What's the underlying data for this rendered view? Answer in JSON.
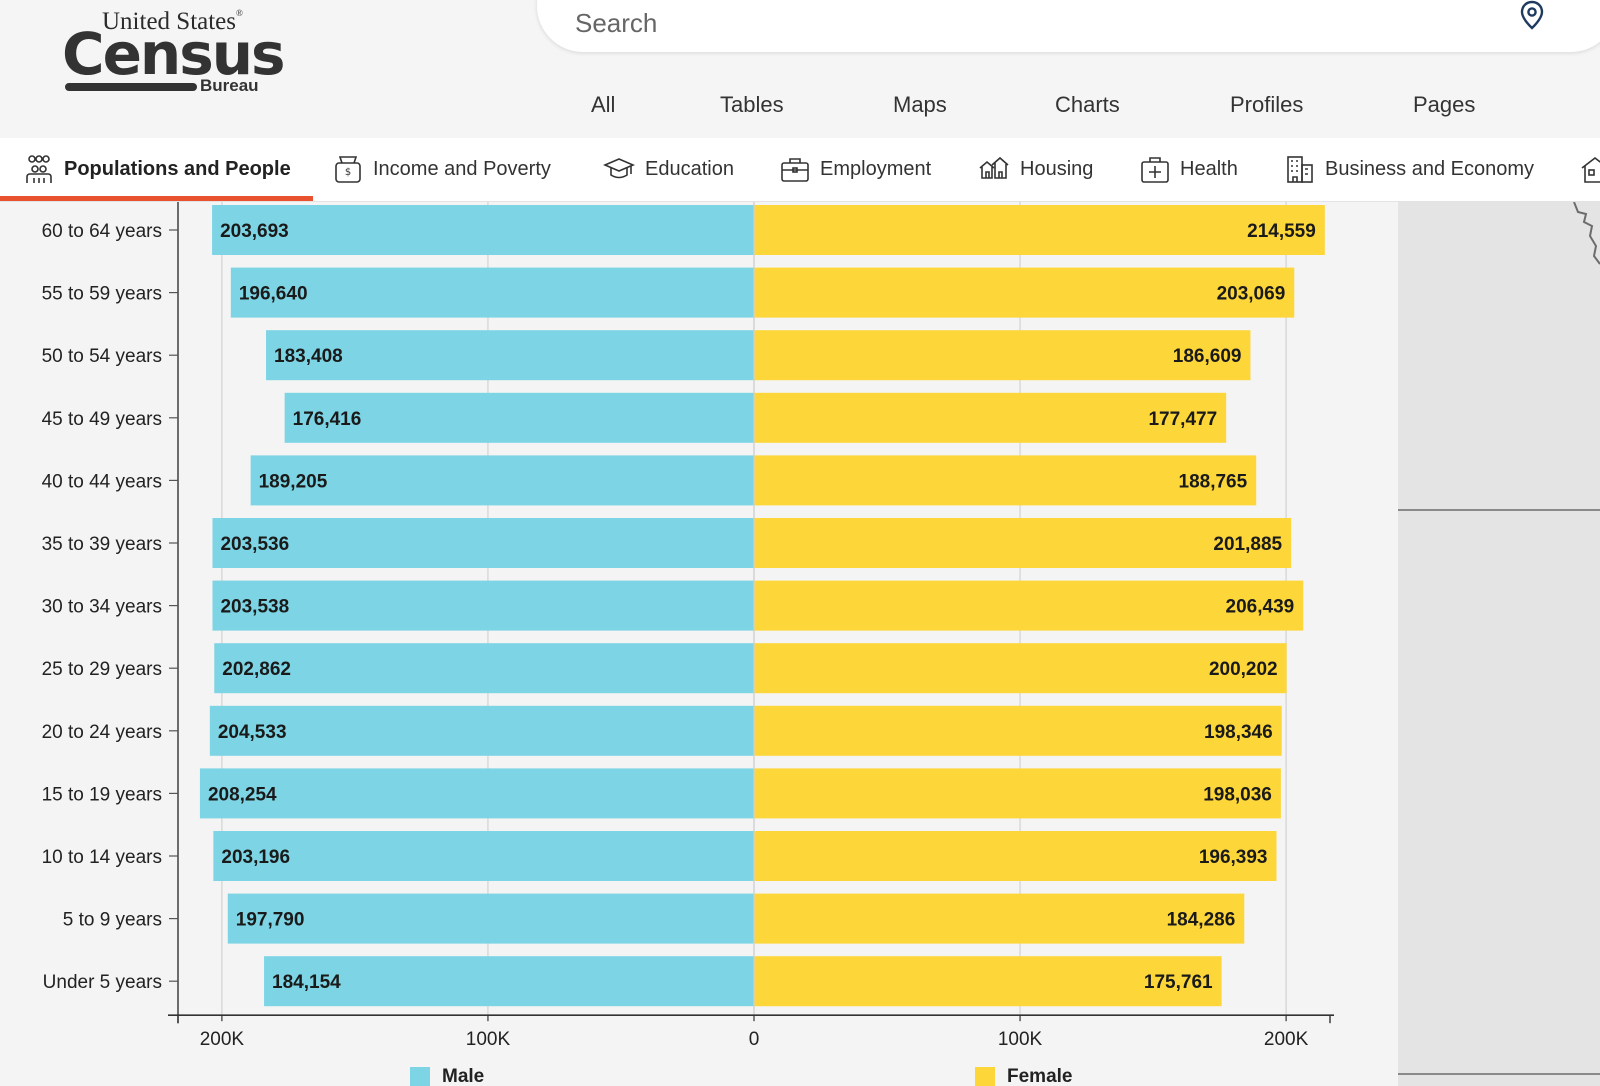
{
  "header": {
    "logo": {
      "line1": "United States",
      "line2": "Census",
      "line3": "Bureau",
      "reg_mark": "®"
    },
    "search": {
      "placeholder": "Search",
      "value": ""
    },
    "filters": [
      "All",
      "Tables",
      "Maps",
      "Charts",
      "Profiles",
      "Pages"
    ],
    "icons": {
      "search_pin": "map-pin-icon"
    }
  },
  "topics": [
    {
      "label": "Populations and People",
      "icon": "people-icon",
      "active": true
    },
    {
      "label": "Income and Poverty",
      "icon": "money-bag-icon",
      "active": false
    },
    {
      "label": "Education",
      "icon": "graduation-cap-icon",
      "active": false
    },
    {
      "label": "Employment",
      "icon": "briefcase-icon",
      "active": false
    },
    {
      "label": "Housing",
      "icon": "houses-icon",
      "active": false
    },
    {
      "label": "Health",
      "icon": "medical-kit-icon",
      "active": false
    },
    {
      "label": "Business and Economy",
      "icon": "buildings-icon",
      "active": false
    },
    {
      "label": "",
      "icon": "house-icon",
      "active": false
    }
  ],
  "colors": {
    "accent": "#e8522f",
    "male": "#7cd4e4",
    "female": "#fdd63a"
  },
  "chart_data": {
    "type": "bar",
    "orientation": "horizontal-population-pyramid",
    "categories": [
      "60 to 64 years",
      "55 to 59 years",
      "50 to 54 years",
      "45 to 49 years",
      "40 to 44 years",
      "35 to 39 years",
      "30 to 34 years",
      "25 to 29 years",
      "20 to 24 years",
      "15 to 19 years",
      "10 to 14 years",
      "5 to 9 years",
      "Under 5 years"
    ],
    "series": [
      {
        "name": "Male",
        "color": "#7cd4e4",
        "values": [
          203693,
          196640,
          183408,
          176416,
          189205,
          203536,
          203538,
          202862,
          204533,
          208254,
          203196,
          197790,
          184154
        ],
        "labels": [
          "203,693",
          "196,640",
          "183,408",
          "176,416",
          "189,205",
          "203,536",
          "203,538",
          "202,862",
          "204,533",
          "208,254",
          "203,196",
          "197,790",
          "184,154"
        ]
      },
      {
        "name": "Female",
        "color": "#fdd63a",
        "values": [
          214559,
          203069,
          186609,
          177477,
          188765,
          201885,
          206439,
          200202,
          198346,
          198036,
          196393,
          184286,
          175761
        ],
        "labels": [
          "214,559",
          "203,069",
          "186,609",
          "177,477",
          "188,765",
          "201,885",
          "206,439",
          "200,202",
          "198,346",
          "198,036",
          "196,393",
          "184,286",
          "175,761"
        ]
      }
    ],
    "x_ticks": [
      {
        "value": -200000,
        "label": "200K"
      },
      {
        "value": -100000,
        "label": "100K"
      },
      {
        "value": 0,
        "label": "0"
      },
      {
        "value": 100000,
        "label": "100K"
      },
      {
        "value": 200000,
        "label": "200K"
      }
    ],
    "xlim": [
      -216500,
      216500
    ],
    "grid": true,
    "legend": "bottom"
  }
}
